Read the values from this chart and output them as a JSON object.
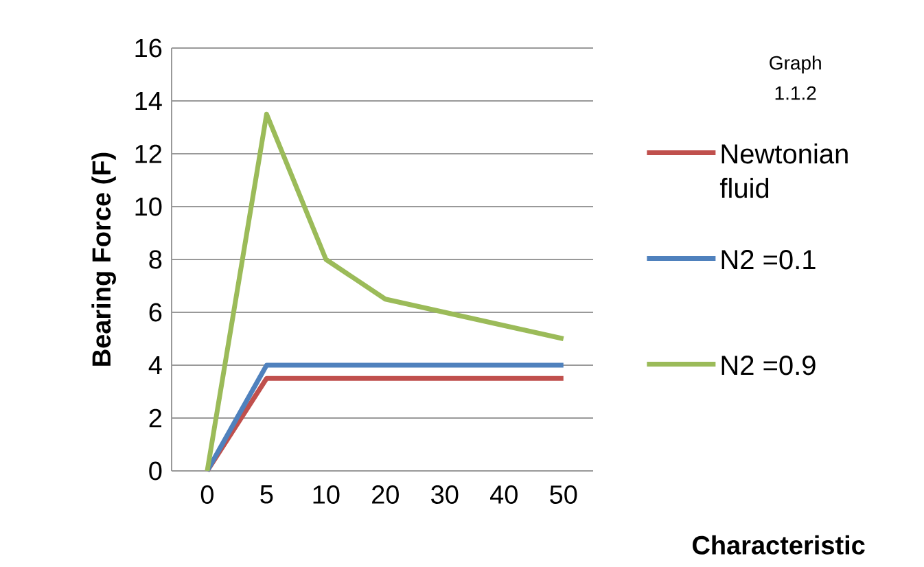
{
  "chart_data": {
    "type": "line",
    "ylabel": "Bearing Force (F)",
    "xlabel": "Characteristic",
    "annotations": [
      "Graph 1.1.2"
    ],
    "categories": [
      "0",
      "5",
      "10",
      "20",
      "30",
      "40",
      "50"
    ],
    "series": [
      {
        "name": "Newtonian fluid",
        "color": "#c0504d",
        "values": [
          0,
          3.5,
          3.5,
          3.5,
          3.5,
          3.5,
          3.5
        ]
      },
      {
        "name": "N2 =0.1",
        "color": "#4f81bd",
        "values": [
          0,
          4,
          4,
          4,
          4,
          4,
          4
        ]
      },
      {
        "name": "N2 =0.9",
        "color": "#9bbb59",
        "values": [
          0,
          13.5,
          8,
          6.5,
          6,
          5.5,
          5
        ]
      }
    ],
    "ylim": [
      0,
      16
    ],
    "yticks": [
      0,
      2,
      4,
      6,
      8,
      10,
      12,
      14,
      16
    ],
    "grid": "y",
    "legend": "right"
  }
}
